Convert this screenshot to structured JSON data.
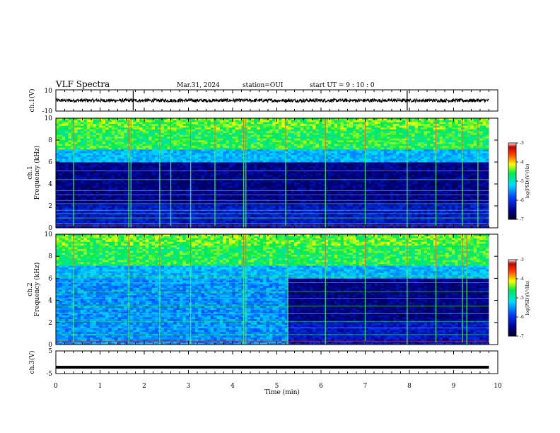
{
  "header": {
    "title": "VLF Spectra",
    "date": "Mar.31, 2024",
    "station": "station=OUI",
    "start_ut": "start  UT =   9 : 10 : 0"
  },
  "chart_data": [
    {
      "type": "line",
      "name": "ch.1 waveform",
      "ylabel": "ch.1(V)",
      "ylim": [
        -10,
        10
      ],
      "yticks": [
        "10",
        "-10"
      ],
      "xlim": [
        0,
        10
      ],
      "level": 0,
      "spikes_min": [
        1.75,
        7.95
      ]
    },
    {
      "type": "heatmap",
      "ylabel": "ch.1\nFrequency (kHz)",
      "ylabel_top": "ch.1",
      "ylabel_bottom": "Frequency  (kHz)",
      "xlim": [
        0,
        9.8
      ],
      "ylim": [
        0,
        10
      ],
      "yticks": [
        "0",
        "2",
        "4",
        "6",
        "8",
        "10"
      ],
      "colorbar": {
        "label": "log(PSD)(V²/Hz)",
        "range": [
          -7,
          -3
        ],
        "ticks": [
          "-3",
          "-4",
          "-5",
          "-6",
          "-7"
        ]
      },
      "bands_khz": [
        0.2,
        0.4,
        0.9,
        1.3,
        1.6,
        2.2,
        2.5,
        3.0,
        3.4,
        4.4,
        5.2
      ],
      "events_min": [
        0.4,
        1.65,
        1.7,
        2.35,
        2.6,
        3.05,
        3.6,
        4.25,
        4.3,
        5.2,
        6.1,
        7.0,
        7.95,
        8.6,
        9.2,
        9.55
      ]
    },
    {
      "type": "heatmap",
      "ylabel": "ch.2\nFrequency (kHz)",
      "ylabel_top": "ch.2",
      "ylabel_bottom": "Frequency  (kHz)",
      "xlim": [
        0,
        9.8
      ],
      "ylim": [
        0,
        10
      ],
      "yticks": [
        "0",
        "2",
        "4",
        "6",
        "8",
        "10"
      ],
      "colorbar": {
        "label": "log(PSD)(V²/Hz)",
        "range": [
          -7,
          -3
        ],
        "ticks": [
          "-3",
          "-4",
          "-5",
          "-6",
          "-7"
        ]
      },
      "noise_floor_change_min": 5.2,
      "bands_khz": [
        0.3,
        0.9,
        1.5,
        2.1,
        2.8,
        3.5,
        4.2,
        4.8,
        5.6,
        6.2
      ],
      "events_min": [
        0.4,
        1.65,
        2.35,
        3.05,
        4.25,
        4.3,
        5.25,
        6.1,
        7.0,
        7.95,
        8.6,
        9.2,
        9.3
      ]
    },
    {
      "type": "line",
      "name": "ch.3 signal",
      "ylabel": "ch.3(V)",
      "ylim": [
        -5,
        5
      ],
      "yticks": [
        "5",
        "-5"
      ],
      "xlim": [
        0,
        9.8
      ],
      "level": -2.2,
      "xlabel": "Time  (min)",
      "xticks": [
        "0",
        "1",
        "2",
        "3",
        "4",
        "5",
        "6",
        "7",
        "8",
        "9",
        "10"
      ]
    }
  ]
}
